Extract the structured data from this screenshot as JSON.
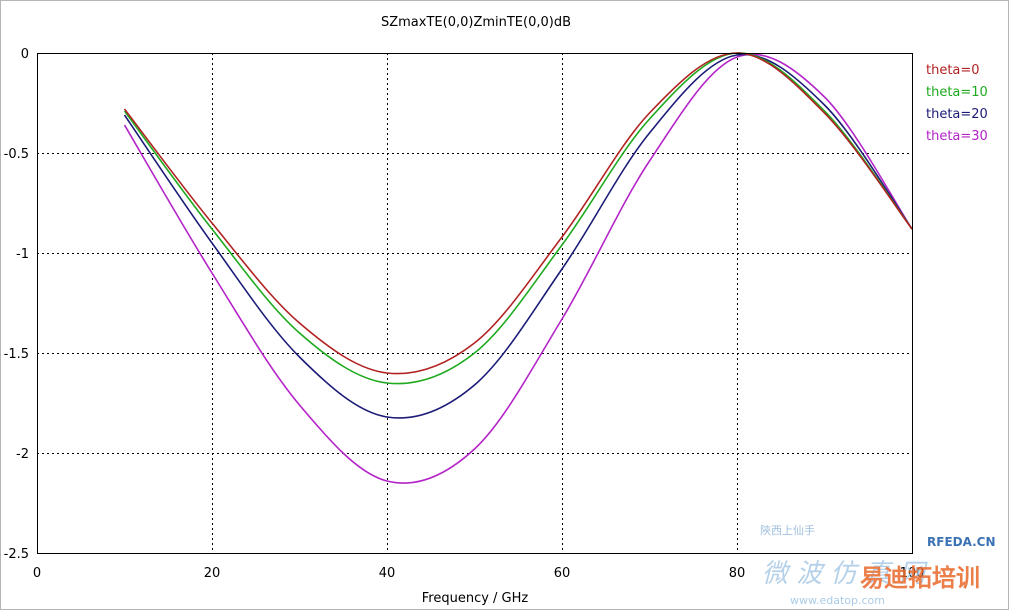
{
  "chart_data": {
    "type": "line",
    "title": "SZmaxTE(0,0)ZminTE(0,0)dB",
    "xlabel": "Frequency / GHz",
    "ylabel": "",
    "xlim": [
      0,
      100
    ],
    "ylim": [
      -2.5,
      0
    ],
    "xticks": [
      "0",
      "20",
      "40",
      "60",
      "80",
      "100"
    ],
    "yticks": [
      "0",
      "-0.5",
      "-1",
      "-1.5",
      "-2",
      "-2.5"
    ],
    "grid": true,
    "legend_position": "right",
    "x": [
      10,
      20,
      30,
      40,
      50,
      60,
      70,
      80,
      90,
      100
    ],
    "series": [
      {
        "name": "theta=0",
        "color": "#b22222",
        "values": [
          -0.28,
          -0.85,
          -1.35,
          -1.6,
          -1.45,
          -0.92,
          -0.3,
          0.0,
          -0.3,
          -0.88
        ]
      },
      {
        "name": "theta=10",
        "color": "#1faa1f",
        "values": [
          -0.29,
          -0.88,
          -1.4,
          -1.65,
          -1.5,
          -0.96,
          -0.33,
          0.0,
          -0.29,
          -0.88
        ]
      },
      {
        "name": "theta=20",
        "color": "#1c1c78",
        "values": [
          -0.31,
          -0.95,
          -1.52,
          -1.82,
          -1.66,
          -1.08,
          -0.4,
          -0.01,
          -0.26,
          -0.88
        ]
      },
      {
        "name": "theta=30",
        "color": "#b424c8",
        "values": [
          -0.36,
          -1.1,
          -1.76,
          -2.14,
          -1.98,
          -1.33,
          -0.54,
          -0.02,
          -0.22,
          -0.88
        ]
      }
    ]
  },
  "watermark": {
    "line1": "陝西上仙手",
    "line2": "微 波 仿 真 网",
    "brand1": "RFEDA.CN",
    "brand2": "易迪拓培训",
    "url": "www.edatop.com"
  }
}
